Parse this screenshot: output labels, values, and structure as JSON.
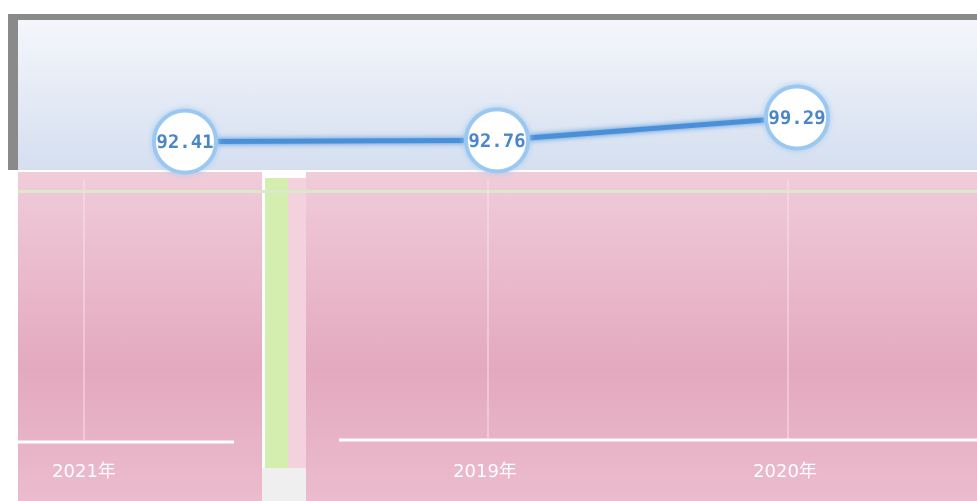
{
  "chart_data": {
    "type": "line",
    "categories": [
      "2021年",
      "2019年",
      "2020年"
    ],
    "values": [
      92.41,
      92.76,
      99.29
    ],
    "color": "#4a90d9",
    "ylim": [
      80,
      100
    ]
  }
}
